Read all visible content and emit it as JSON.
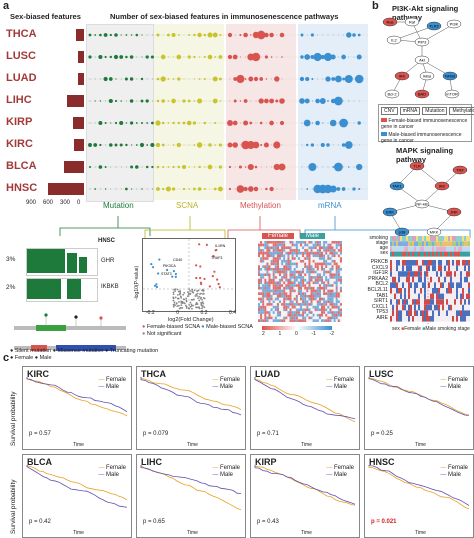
{
  "panel_a": {
    "label": "a",
    "left_header": "Sex-biased features",
    "center_header": "Number of sex-biased features in immunosenescence pathways",
    "cancers": [
      "THCA",
      "LUSC",
      "LUAD",
      "LIHC",
      "KIRP",
      "KIRC",
      "BLCA",
      "HNSC"
    ],
    "bar_axis_ticks": [
      "900",
      "600",
      "300",
      "0"
    ],
    "bar_values": [
      120,
      95,
      95,
      260,
      170,
      150,
      310,
      560
    ],
    "sections": [
      "Mutation",
      "SCNA",
      "Methylation",
      "mRNA"
    ]
  },
  "panel_b": {
    "label": "b",
    "title_top": "PI3K-Akt signaling pathway",
    "title_bottom": "MAPK signaling pathway",
    "legend_types": [
      "CNV",
      "mRNA",
      "Mutation",
      "Methylation"
    ],
    "legend_female": "Female-biased immunosenescence gene in cancer",
    "legend_male": "Male-biased immunosenescence gene in cancer",
    "top_genes": [
      "Ras",
      "Raf",
      "TLR2",
      "PI3K",
      "IL2",
      "PIP3",
      "Akt",
      "IKK",
      "IkBa",
      "NFkB",
      "Bcl-2",
      "BAD",
      "mTOR"
    ],
    "bottom_genes": [
      "TLR",
      "TAK1",
      "IKK",
      "NF-kB",
      "ERK",
      "JNK",
      "p38",
      "MKK",
      "TNF"
    ]
  },
  "mutation": {
    "hnsc": "HNSC",
    "pct1": "3%",
    "gene1": "GHR",
    "pct2": "2%",
    "gene2": "IKBKB",
    "legend_line1": "Silent mutation",
    "legend_line2": "Missense mutation",
    "legend_line3": "Truncating mutation",
    "legend_female": "Female",
    "legend_male": "Male"
  },
  "scna": {
    "ylabel": "-log10(P-value)",
    "xlabel": "log2(Fold Change)",
    "xticks": [
      "-0.2",
      "0",
      "0.2",
      "0.4"
    ],
    "legend1": "Female-biased SCNA",
    "legend2": "Male-biased SCNA",
    "legend3": "Not significant",
    "labels": [
      "IL1RN",
      "TRAF3",
      "CD40",
      "PIK3CA",
      "STAT3"
    ]
  },
  "methylation": {
    "female": "Female",
    "male": "Male",
    "scale": [
      "2",
      "1",
      "0",
      "-1",
      "-2"
    ]
  },
  "mrna": {
    "top_labels": [
      "smoking",
      "stage",
      "age",
      "sex"
    ],
    "genes": [
      "PRKCB",
      "CXCL9",
      "IGF1R",
      "PRKAA2",
      "BCL2",
      "BCL2L11",
      "TAB1",
      "SIRT1",
      "CXCL1",
      "TP53",
      "AIRE"
    ],
    "legend_sex": "sex",
    "legend_female": "Female",
    "legend_male": "Male",
    "legend_smoking": "smoking",
    "legend_stage": "stage"
  },
  "panel_c": {
    "label": "c",
    "ylabel": "Survival probability",
    "xlabel": "Time",
    "female": "Female",
    "male": "Male",
    "plots": [
      {
        "title": "KIRC",
        "p": "p = 0.57",
        "red": false
      },
      {
        "title": "THCA",
        "p": "p = 0.079",
        "red": false
      },
      {
        "title": "LUAD",
        "p": "p = 0.71",
        "red": false
      },
      {
        "title": "LUSC",
        "p": "p = 0.25",
        "red": false
      },
      {
        "title": "BLCA",
        "p": "p = 0.42",
        "red": false
      },
      {
        "title": "LIHC",
        "p": "p = 0.65",
        "red": false
      },
      {
        "title": "KIRP",
        "p": "p = 0.43",
        "red": false
      },
      {
        "title": "HNSC",
        "p": "p = 0.021",
        "red": true
      }
    ]
  },
  "colors": {
    "bar": "#8b2c2c",
    "mutation": "#1e7a3a",
    "scna": "#c8c42a",
    "methylation": "#d9534f",
    "mrna": "#3a8fd0",
    "female_line": "#e8a020",
    "male_line": "#6050b0"
  }
}
